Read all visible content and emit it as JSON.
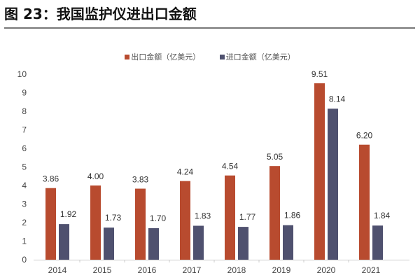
{
  "title": "图 23：我国监护仪进出口金额",
  "chart_data": {
    "type": "bar",
    "categories": [
      "2014",
      "2015",
      "2016",
      "2017",
      "2018",
      "2019",
      "2020",
      "2021"
    ],
    "series": [
      {
        "name": "出口金额（亿美元）",
        "color": "#b84b2f",
        "values": [
          3.86,
          4.0,
          3.83,
          4.24,
          4.54,
          5.05,
          9.51,
          6.2
        ],
        "labels": [
          "3.86",
          "4.00",
          "3.83",
          "4.24",
          "4.54",
          "5.05",
          "9.51",
          "6.20"
        ]
      },
      {
        "name": "进口金额（亿美元）",
        "color": "#4f516f",
        "values": [
          1.92,
          1.73,
          1.7,
          1.83,
          1.77,
          1.86,
          8.14,
          1.84
        ],
        "labels": [
          "1.92",
          "1.73",
          "1.70",
          "1.83",
          "1.77",
          "1.86",
          "8.14",
          "1.84"
        ]
      }
    ],
    "ylim": [
      0,
      10
    ],
    "yticks": [
      "0",
      "1",
      "2",
      "3",
      "4",
      "5",
      "6",
      "7",
      "8",
      "9",
      "10"
    ],
    "grid": false,
    "legend": "top-center"
  }
}
